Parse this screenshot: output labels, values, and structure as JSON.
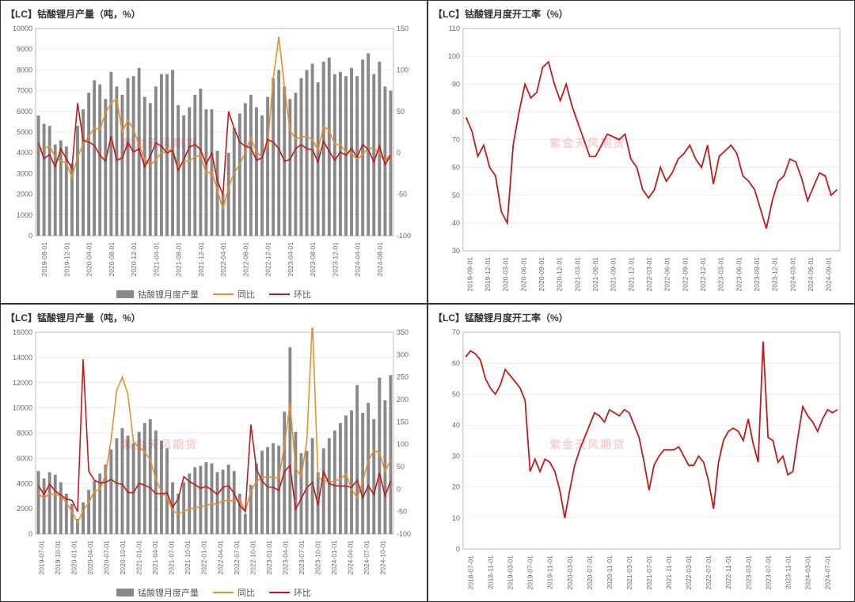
{
  "colors": {
    "bar": "#888888",
    "orange": "#e98f2e",
    "red": "#c41919",
    "grid": "#dddddd",
    "axis": "#aaaaaa",
    "text": "#666666",
    "title": "#333333"
  },
  "watermark": "紫金天风期货",
  "charts": [
    {
      "id": "tl",
      "title": "【LC】钴酸锂月产量（吨，%）",
      "type": "combo",
      "left_axis": {
        "min": 0,
        "max": 10000,
        "step": 1000
      },
      "right_axis": {
        "min": -100,
        "max": 150,
        "step": 50
      },
      "x_labels": [
        "2019-08-01",
        "2019-12-01",
        "2020-04-01",
        "2020-08-01",
        "2020-12-01",
        "2021-04-01",
        "2021-08-01",
        "2021-12-01",
        "2022-04-01",
        "2022-08-01",
        "2022-12-01",
        "2023-04-01",
        "2023-08-01",
        "2023-12-01",
        "2024-04-01",
        "2024-08-01"
      ],
      "bar_values": [
        5800,
        5400,
        5300,
        4400,
        4600,
        4300,
        3500,
        5300,
        6100,
        6900,
        7500,
        7300,
        6600,
        7900,
        7200,
        6800,
        7600,
        7700,
        8100,
        6700,
        6400,
        7200,
        7800,
        7800,
        8000,
        6300,
        5800,
        6200,
        6800,
        7100,
        6100,
        6100,
        4100,
        2000,
        4000,
        5200,
        5900,
        6400,
        6800,
        6200,
        5800,
        6700,
        7600,
        8000,
        7200,
        6600,
        6900,
        7600,
        8000,
        8300,
        7400,
        8400,
        8600,
        7800,
        7900,
        7700,
        8100,
        7700,
        8500,
        8800,
        7800,
        8400,
        7200,
        7000
      ],
      "line1_values": [
        5,
        5,
        8,
        -5,
        -10,
        -12,
        -30,
        -5,
        10,
        20,
        30,
        28,
        48,
        60,
        65,
        25,
        40,
        28,
        10,
        -8,
        -15,
        -8,
        0,
        2,
        5,
        -18,
        -10,
        -10,
        -5,
        -3,
        -25,
        -22,
        -45,
        -68,
        -42,
        -24,
        -14,
        1,
        18,
        1,
        -5,
        10,
        90,
        140,
        80,
        27,
        17,
        19,
        20,
        16,
        3,
        32,
        27,
        10,
        10,
        1,
        0,
        -8,
        -2,
        6,
        5,
        0,
        -11,
        0
      ],
      "line2_values": [
        12,
        -7,
        -2,
        -17,
        5,
        -7,
        -19,
        60,
        15,
        13,
        9,
        -3,
        -10,
        20,
        -9,
        -6,
        12,
        1,
        5,
        -17,
        -4,
        12,
        8,
        0,
        3,
        -21,
        -8,
        7,
        10,
        4,
        -14,
        0,
        -33,
        -51,
        50,
        30,
        13,
        8,
        6,
        -9,
        -6,
        16,
        13,
        5,
        -10,
        -8,
        5,
        10,
        5,
        4,
        -11,
        14,
        2,
        -9,
        1,
        -3,
        5,
        -5,
        10,
        4,
        -11,
        8,
        -14,
        -3
      ],
      "legend": [
        "钴酸锂月度产量",
        "同比",
        "环比"
      ]
    },
    {
      "id": "tr",
      "title": "【LC】钴酸锂月度开工率（%）",
      "type": "line",
      "left_axis": {
        "min": 30,
        "max": 110,
        "step": 10
      },
      "x_labels": [
        "2019-09-01",
        "2019-12-01",
        "2020-03-01",
        "2020-06-01",
        "2020-09-01",
        "2020-12-01",
        "2021-03-01",
        "2021-06-01",
        "2021-09-01",
        "2021-12-01",
        "2022-03-01",
        "2022-06-01",
        "2022-09-01",
        "2022-12-01",
        "2023-03-01",
        "2023-06-01",
        "2023-09-01",
        "2023-12-01",
        "2024-03-01",
        "2024-06-01",
        "2024-09-01"
      ],
      "line_values": [
        78,
        73,
        64,
        68,
        60,
        57,
        44,
        40,
        68,
        80,
        90,
        85,
        87,
        96,
        98,
        90,
        84,
        90,
        82,
        76,
        70,
        64,
        64,
        68,
        72,
        71,
        70,
        72,
        63,
        60,
        52,
        49,
        52,
        60,
        55,
        58,
        63,
        65,
        68,
        63,
        60,
        68,
        54,
        64,
        66,
        68,
        65,
        57,
        55,
        52,
        45,
        38,
        48,
        55,
        57,
        63,
        62,
        56,
        48,
        53,
        58,
        57,
        50,
        52
      ]
    },
    {
      "id": "bl",
      "title": "【LC】锰酸锂月产量（吨，%）",
      "type": "combo",
      "left_axis": {
        "min": 0,
        "max": 16000,
        "step": 2000
      },
      "right_axis": {
        "min": -100,
        "max": 350,
        "step": 50
      },
      "x_labels": [
        "2019-07-01",
        "2019-10-01",
        "2020-01-01",
        "2020-04-01",
        "2020-07-01",
        "2020-10-01",
        "2021-01-01",
        "2021-04-01",
        "2021-07-01",
        "2021-10-01",
        "2022-01-01",
        "2022-04-01",
        "2022-07-01",
        "2022-10-01",
        "2023-01-01",
        "2023-04-01",
        "2023-07-01",
        "2023-10-01",
        "2024-01-01",
        "2024-04-01",
        "2024-07-01",
        "2024-10-01"
      ],
      "bar_values": [
        5000,
        4400,
        4900,
        4700,
        4100,
        3200,
        2400,
        1200,
        2500,
        3500,
        4200,
        4800,
        5500,
        6700,
        7600,
        8400,
        7800,
        7200,
        8100,
        8800,
        9100,
        8200,
        7400,
        6800,
        4100,
        3200,
        4100,
        4800,
        5300,
        5400,
        5700,
        5600,
        4900,
        5100,
        5500,
        5000,
        3200,
        1600,
        3900,
        5600,
        6600,
        6900,
        7200,
        7000,
        9700,
        14800,
        8100,
        6400,
        6600,
        7600,
        4900,
        6800,
        7600,
        8200,
        8800,
        9400,
        9800,
        11800,
        9600,
        10400,
        9100,
        12400,
        10600,
        12600
      ],
      "line1_values": [
        -10,
        -20,
        -10,
        -12,
        -15,
        -30,
        -50,
        -75,
        -48,
        -30,
        -5,
        0,
        32,
        110,
        220,
        250,
        212,
        106,
        93,
        83,
        66,
        22,
        -5,
        -19,
        -47,
        -56,
        -49,
        -45,
        -42,
        -39,
        -37,
        -32,
        -34,
        -25,
        -26,
        -26,
        -22,
        -50,
        -5,
        17,
        25,
        28,
        26,
        25,
        98,
        190,
        47,
        28,
        106,
        375,
        26,
        21,
        15,
        19,
        22,
        34,
        1,
        -20,
        18,
        63,
        86,
        82,
        39,
        66
      ],
      "line2_values": [
        8,
        -12,
        11,
        -4,
        -13,
        -22,
        -25,
        -50,
        290,
        40,
        20,
        14,
        15,
        22,
        13,
        11,
        -7,
        -8,
        13,
        9,
        3,
        -10,
        -10,
        -8,
        -40,
        -22,
        28,
        17,
        10,
        2,
        6,
        -2,
        -12,
        4,
        8,
        -9,
        -36,
        -50,
        144,
        44,
        18,
        5,
        4,
        -3,
        39,
        53,
        -45,
        -21,
        3,
        15,
        -36,
        39,
        12,
        8,
        7,
        7,
        4,
        20,
        -19,
        8,
        -12,
        36,
        -15,
        19
      ],
      "legend": [
        "锰酸锂月度产量",
        "同比",
        "环比"
      ]
    },
    {
      "id": "br",
      "title": "【LC】锰酸锂月度开工率（%）",
      "type": "line",
      "left_axis": {
        "min": 0,
        "max": 70,
        "step": 10
      },
      "x_labels": [
        "2018-07-01",
        "2018-11-01",
        "2019-03-01",
        "2019-07-01",
        "2019-11-01",
        "2020-03-01",
        "2020-07-01",
        "2020-11-01",
        "2021-03-01",
        "2021-07-01",
        "2021-11-01",
        "2022-03-01",
        "2022-07-01",
        "2022-11-01",
        "2023-03-01",
        "2023-07-01",
        "2023-11-01",
        "2024-03-01",
        "2024-07-01"
      ],
      "line_values": [
        62,
        64,
        63,
        61,
        55,
        52,
        50,
        53,
        58,
        56,
        54,
        52,
        48,
        25,
        29,
        25,
        29,
        28,
        25,
        19,
        10,
        19,
        27,
        32,
        36,
        40,
        44,
        43,
        41,
        45,
        44,
        43,
        45,
        44,
        40,
        36,
        28,
        19,
        27,
        30,
        32,
        32,
        32,
        33,
        30,
        27,
        27,
        30,
        28,
        22,
        13,
        28,
        35,
        38,
        39,
        38,
        35,
        42,
        34,
        28,
        67,
        36,
        35,
        28,
        30,
        24,
        25,
        36,
        46,
        43,
        41,
        38,
        42,
        45,
        44,
        45
      ]
    }
  ]
}
